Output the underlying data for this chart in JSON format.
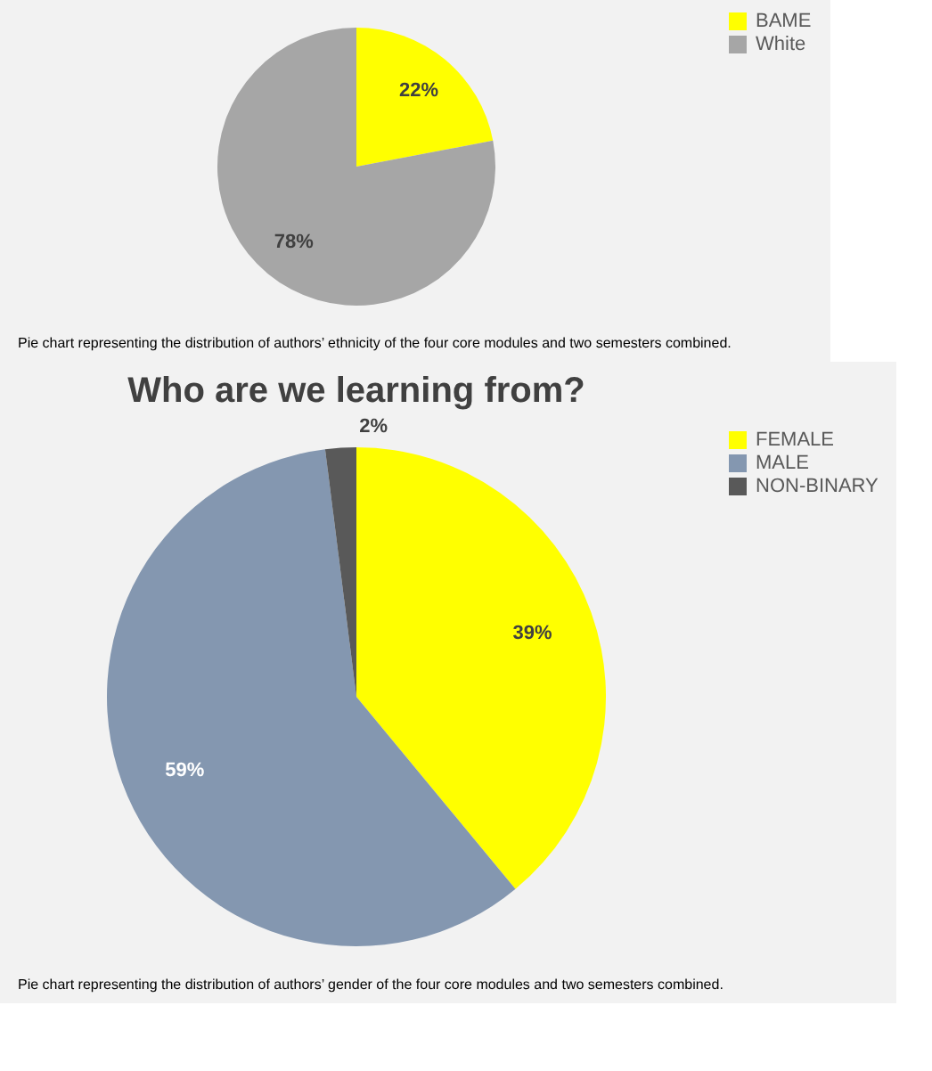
{
  "chart_data": [
    {
      "type": "pie",
      "categories": [
        "BAME",
        "White"
      ],
      "values": [
        22,
        78
      ],
      "colors": [
        "#ffff00",
        "#a6a6a6"
      ],
      "value_labels": [
        "22%",
        "78%"
      ],
      "legend": "right",
      "annotations": [
        "Pie chart representing the distribution of authors’ ethnicity of the four core modules and two semesters combined."
      ]
    },
    {
      "type": "pie",
      "title": "Who are we learning from?",
      "categories": [
        "FEMALE",
        "MALE",
        "NON-BINARY"
      ],
      "values": [
        39,
        59,
        2
      ],
      "colors": [
        "#ffff00",
        "#8497b0",
        "#595959"
      ],
      "value_labels": [
        "39%",
        "59%",
        "2%"
      ],
      "legend": "right",
      "annotations": [
        "Pie chart representing the distribution of authors’ gender of the four core modules and two semesters combined."
      ]
    }
  ]
}
